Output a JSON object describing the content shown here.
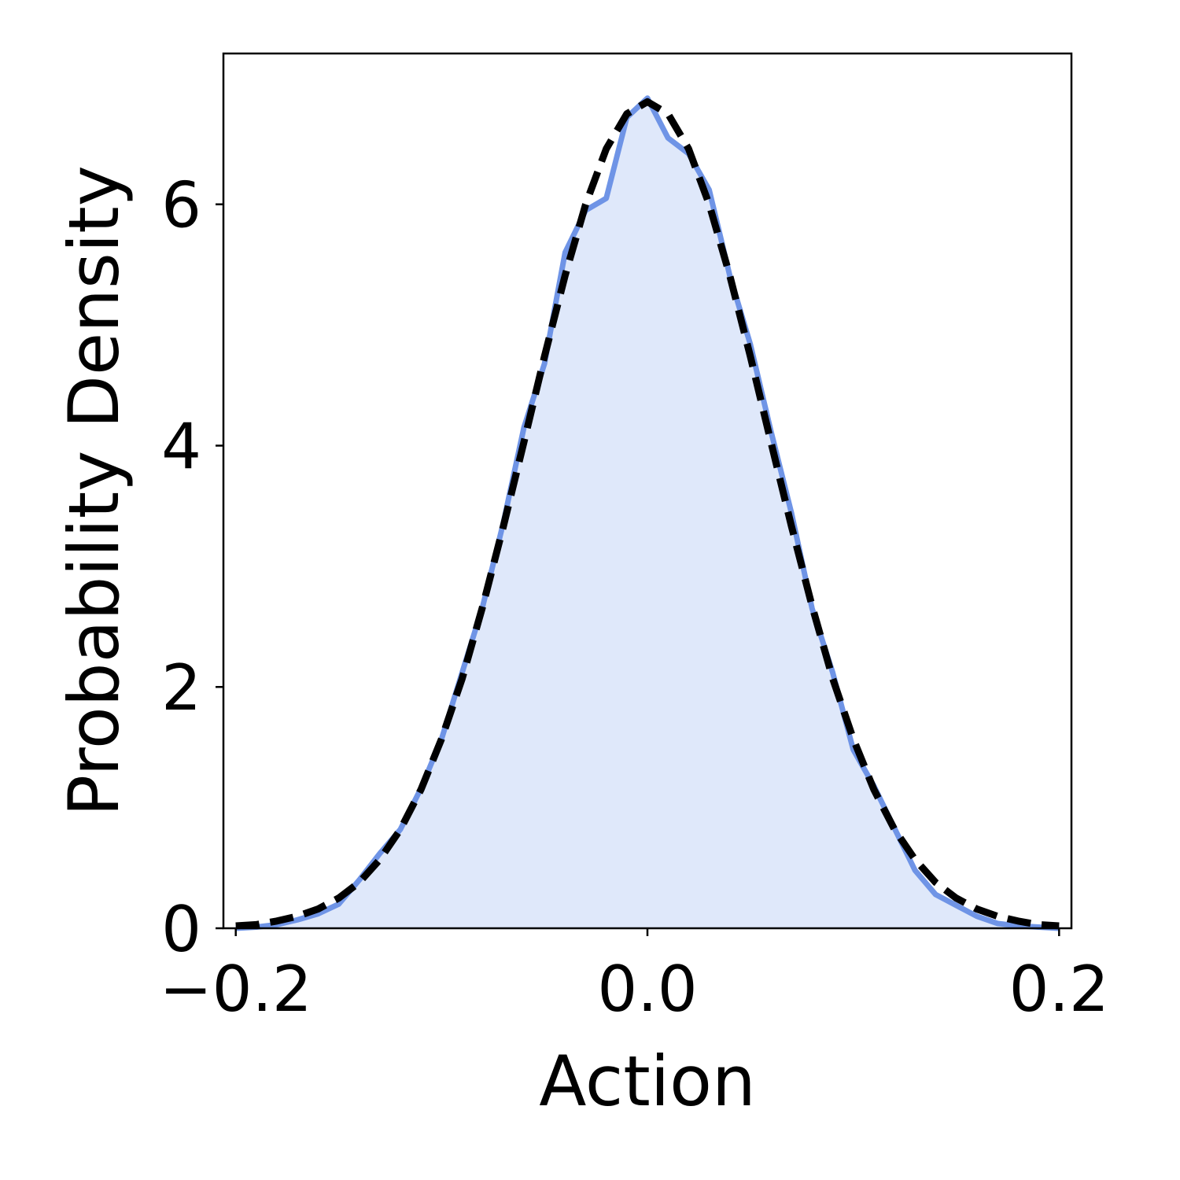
{
  "chart_data": {
    "type": "line",
    "x_label": "Action",
    "y_label": "Probability Density",
    "x": [
      -0.2,
      -0.19,
      -0.18,
      -0.17,
      -0.16,
      -0.15,
      -0.14,
      -0.13,
      -0.12,
      -0.11,
      -0.1,
      -0.09,
      -0.08,
      -0.07,
      -0.06,
      -0.05,
      -0.04,
      -0.03,
      -0.02,
      -0.01,
      0,
      0.01,
      0.02,
      0.03,
      0.04,
      0.05,
      0.06,
      0.07,
      0.08,
      0.09,
      0.1,
      0.11,
      0.12,
      0.13,
      0.14,
      0.15,
      0.16,
      0.17,
      0.18,
      0.19,
      0.2
    ],
    "series": [
      {
        "color": "#6f94e6",
        "fill": "#dfe8fa",
        "style": "solid",
        "values": [
          0,
          0.01,
          0.03,
          0.07,
          0.12,
          0.2,
          0.4,
          0.62,
          0.82,
          1.16,
          1.57,
          2.12,
          2.67,
          3.36,
          4.15,
          4.68,
          5.6,
          5.95,
          6.05,
          6.72,
          6.88,
          6.55,
          6.42,
          6.12,
          5.41,
          4.84,
          4.12,
          3.44,
          2.65,
          2.12,
          1.48,
          1.18,
          0.83,
          0.48,
          0.28,
          0.19,
          0.1,
          0.04,
          0.02,
          0.01,
          0
        ]
      },
      {
        "color": "#000000",
        "style": "dashed",
        "values": [
          0.02,
          0.03,
          0.06,
          0.1,
          0.16,
          0.25,
          0.38,
          0.57,
          0.82,
          1.15,
          1.57,
          2.07,
          2.67,
          3.33,
          4.03,
          4.74,
          5.41,
          6.0,
          6.46,
          6.75,
          6.85,
          6.75,
          6.46,
          6.0,
          5.41,
          4.74,
          4.03,
          3.33,
          2.67,
          2.07,
          1.57,
          1.15,
          0.82,
          0.57,
          0.38,
          0.25,
          0.16,
          0.1,
          0.06,
          0.03,
          0.02
        ]
      }
    ],
    "xlim": [
      -0.206,
      0.206
    ],
    "xticks": [
      {
        "value": -0.2,
        "label": "−0.2"
      },
      {
        "value": 0,
        "label": "0.0"
      },
      {
        "value": 0.2,
        "label": "0.2"
      }
    ],
    "ylim": [
      0,
      7.25
    ],
    "yticks": [
      0,
      2,
      4,
      6
    ]
  }
}
